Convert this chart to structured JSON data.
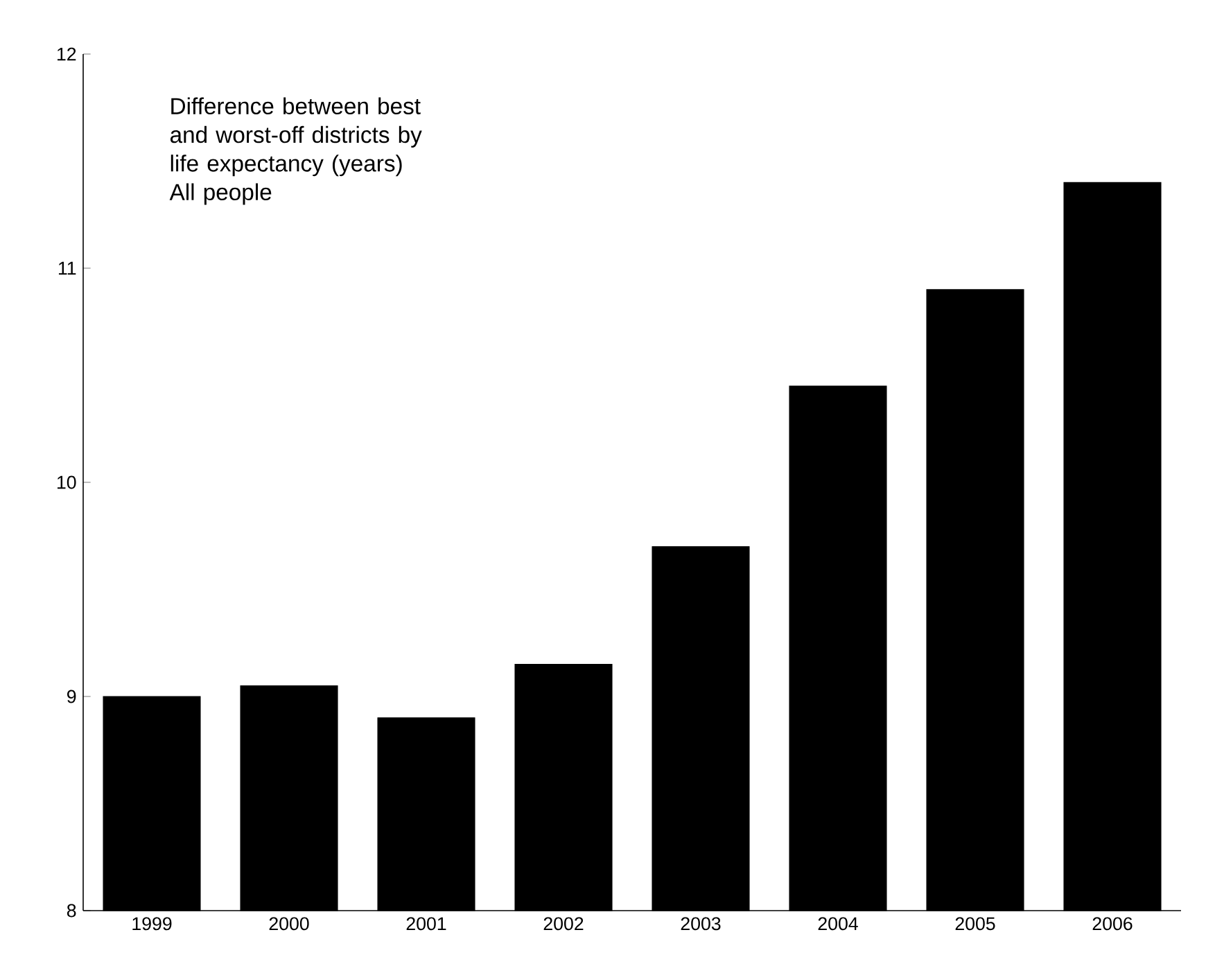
{
  "chart_data": {
    "type": "bar",
    "title": "Difference between best and worst-off districts by life expectancy (years) All people",
    "categories": [
      "1999",
      "2000",
      "2001",
      "2002",
      "2003",
      "2004",
      "2005",
      "2006"
    ],
    "values": [
      9.0,
      9.05,
      8.9,
      9.15,
      9.7,
      10.45,
      10.9,
      11.4
    ],
    "color": "#000000",
    "ylim": [
      8,
      12
    ],
    "yticks": [
      8,
      9,
      10,
      11,
      12
    ],
    "grid": false
  }
}
